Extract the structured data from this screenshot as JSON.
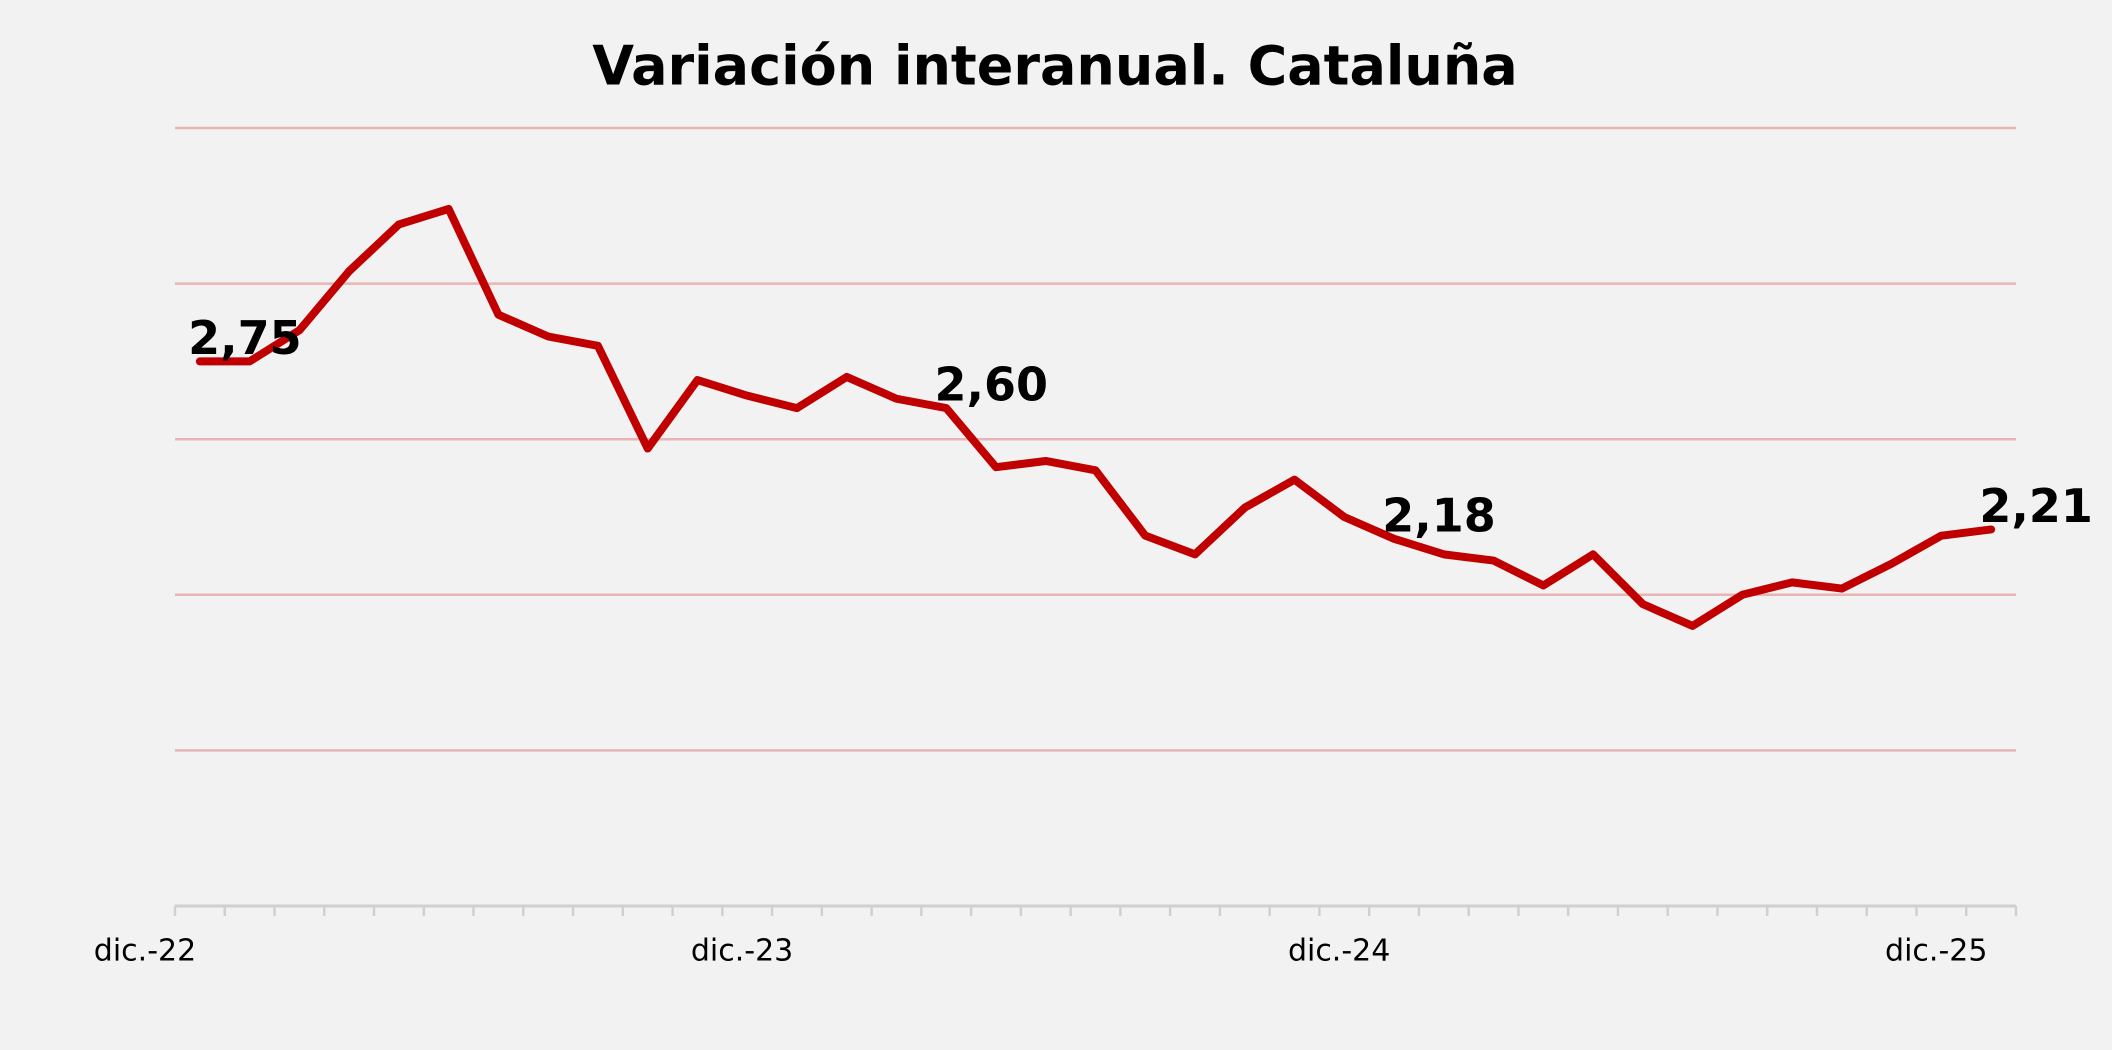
{
  "chart_data": {
    "type": "line",
    "title": "Variación interanual. Cataluña",
    "categories": [
      "dic.-22",
      null,
      null,
      null,
      null,
      null,
      null,
      null,
      null,
      null,
      null,
      null,
      "dic.-23",
      null,
      null,
      null,
      null,
      null,
      null,
      null,
      null,
      null,
      null,
      null,
      "dic.-24",
      null,
      null,
      null,
      null,
      null,
      null,
      null,
      null,
      null,
      null,
      null,
      "dic.-25"
    ],
    "series": [
      {
        "name": "Cataluña",
        "color": "#c00000",
        "values": [
          2.75,
          2.75,
          2.85,
          3.04,
          3.19,
          3.24,
          2.9,
          2.83,
          2.8,
          2.47,
          2.69,
          2.64,
          2.6,
          2.7,
          2.63,
          2.6,
          2.41,
          2.43,
          2.4,
          2.19,
          2.13,
          2.28,
          2.37,
          2.25,
          2.18,
          2.13,
          2.11,
          2.03,
          2.13,
          1.97,
          1.9,
          2.0,
          2.04,
          2.02,
          2.1,
          2.19,
          2.21
        ],
        "value_labels": [
          "2,75",
          null,
          null,
          null,
          null,
          null,
          null,
          null,
          null,
          null,
          null,
          null,
          null,
          null,
          null,
          "2,60",
          null,
          null,
          null,
          null,
          null,
          null,
          null,
          null,
          "2,18",
          null,
          null,
          null,
          null,
          null,
          null,
          null,
          null,
          null,
          null,
          null,
          "2,21"
        ]
      }
    ],
    "ylim": [
      1,
      3.5
    ],
    "yticks": [
      1,
      1.5,
      2,
      2.5,
      3,
      3.5
    ],
    "grid": true
  }
}
